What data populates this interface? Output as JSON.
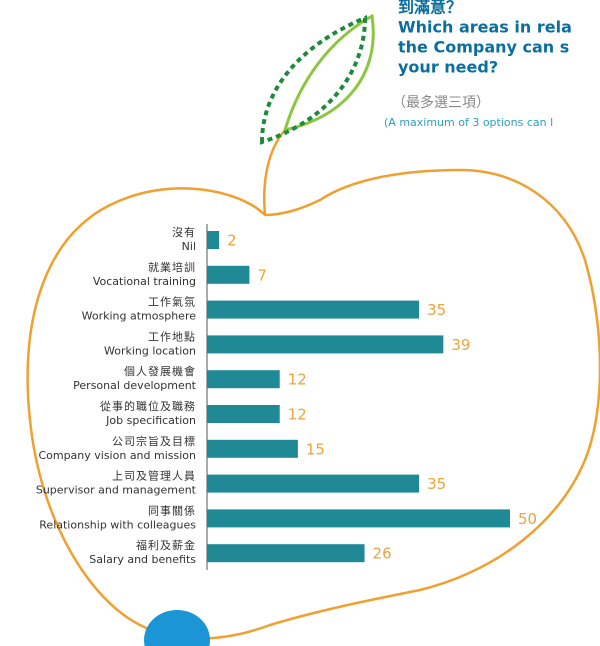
{
  "chart_data": {
    "type": "bar",
    "orientation": "horizontal",
    "title_lines": [
      "到滿意？",
      "Which areas in rela",
      "the Company can s",
      "your need?"
    ],
    "subtitle": "（最多選三項）",
    "note": "(A maximum of 3 options can l",
    "categories": [
      [
        "沒有",
        "Nil"
      ],
      [
        "就業培訓",
        "Vocational training"
      ],
      [
        "工作氣氛",
        "Working atmosphere"
      ],
      [
        "工作地點",
        "Working location"
      ],
      [
        "個人發展機會",
        "Personal development"
      ],
      [
        "從事的職位及職務",
        "Job specification"
      ],
      [
        "公司宗旨及目標",
        "Company vision and mission"
      ],
      [
        "上司及管理人員",
        "Supervisor and management"
      ],
      [
        "同事關係",
        "Relationship with colleagues"
      ],
      [
        "福利及薪金",
        "Salary and benefits"
      ]
    ],
    "values": [
      2,
      7,
      35,
      39,
      12,
      12,
      15,
      35,
      50,
      26
    ],
    "color": "#1f8a96",
    "label_color": "#eba43a",
    "xlim": [
      0,
      50
    ]
  }
}
